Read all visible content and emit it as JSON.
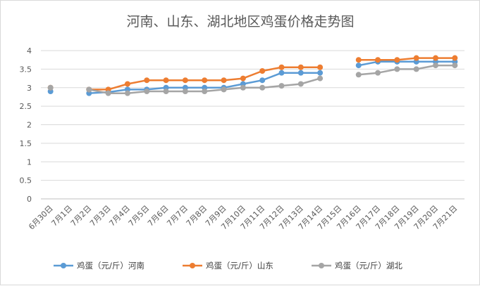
{
  "chart_data": {
    "type": "line",
    "title": "河南、山东、湖北地区鸡蛋价格走势图",
    "xlabel": "",
    "ylabel": "",
    "ylim": [
      0,
      4
    ],
    "yticks": [
      "0",
      "0.5",
      "1",
      "1.5",
      "2",
      "2.5",
      "3",
      "3.5",
      "4"
    ],
    "grid": true,
    "legend_position": "bottom",
    "categories": [
      "6月30日",
      "7月1日",
      "7月2日",
      "7月3日",
      "7月4日",
      "7月5日",
      "7月6日",
      "7月7日",
      "7月8日",
      "7月9日",
      "7月10日",
      "7月11日",
      "7月12日",
      "7月13日",
      "7月14日",
      "7月15日",
      "7月16日",
      "7月17日",
      "7月18日",
      "7月19日",
      "7月20日",
      "7月21日"
    ],
    "series": [
      {
        "name": "鸡蛋（元/斤）河南",
        "color": "#5b9bd5",
        "values": [
          2.9,
          null,
          2.85,
          2.88,
          2.95,
          2.95,
          3.0,
          3.0,
          3.0,
          3.0,
          3.1,
          3.2,
          3.4,
          3.4,
          3.4,
          null,
          3.6,
          3.7,
          3.7,
          3.7,
          3.7,
          3.7
        ]
      },
      {
        "name": "鸡蛋（元/斤）山东",
        "color": "#ed7d31",
        "values": [
          3.0,
          null,
          2.95,
          2.95,
          3.1,
          3.2,
          3.2,
          3.2,
          3.2,
          3.2,
          3.25,
          3.45,
          3.55,
          3.55,
          3.55,
          null,
          3.75,
          3.75,
          3.75,
          3.8,
          3.8,
          3.8
        ]
      },
      {
        "name": "鸡蛋（元/斤）湖北",
        "color": "#a5a5a5",
        "values": [
          3.0,
          null,
          2.95,
          2.85,
          2.85,
          2.9,
          2.9,
          2.9,
          2.9,
          2.95,
          3.0,
          3.0,
          3.05,
          3.1,
          3.25,
          null,
          3.35,
          3.4,
          3.5,
          3.5,
          3.6,
          3.6
        ]
      }
    ]
  }
}
